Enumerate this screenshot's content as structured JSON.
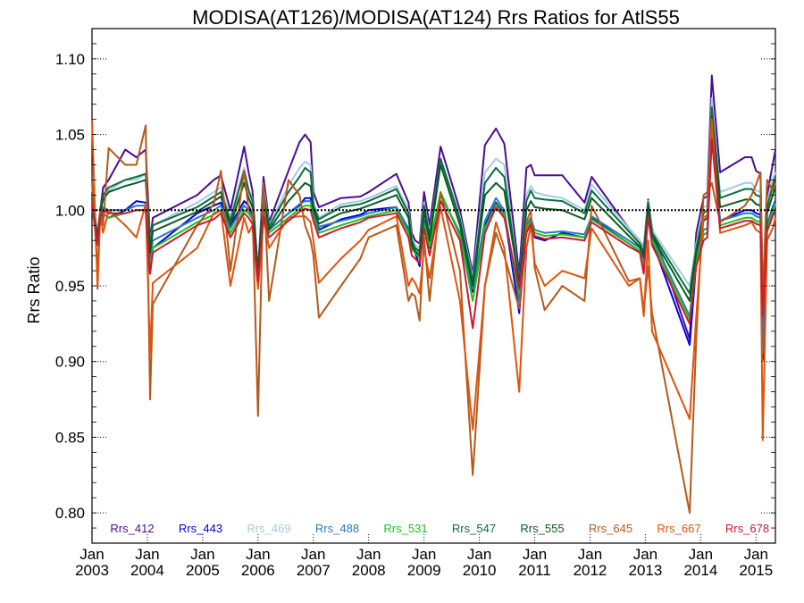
{
  "chart_data": {
    "type": "line",
    "title": "MODISA(AT126)/MODISA(AT124)  Rrs Ratios for AtlS55",
    "xlabel": "",
    "ylabel": "Rrs Ratio",
    "xlim": [
      2003.0,
      2015.35
    ],
    "ylim": [
      0.78,
      1.12
    ],
    "y_ticks": [
      0.8,
      0.85,
      0.9,
      0.95,
      1.0,
      1.05,
      1.1
    ],
    "y_tick_labels": [
      "0.80",
      "0.85",
      "0.90",
      "0.95",
      "1.00",
      "1.05",
      "1.10"
    ],
    "x_ticks": [
      2003,
      2004,
      2005,
      2006,
      2007,
      2008,
      2009,
      2010,
      2011,
      2012,
      2013,
      2014,
      2015
    ],
    "x_tick_labels_top": [
      "Jan",
      "Jan",
      "Jan",
      "Jan",
      "Jan",
      "Jan",
      "Jan",
      "Jan",
      "Jan",
      "Jan",
      "Jan",
      "Jan",
      "Jan"
    ],
    "x_tick_labels_bottom": [
      "2003",
      "2004",
      "2005",
      "2006",
      "2007",
      "2008",
      "2009",
      "2010",
      "2011",
      "2012",
      "2013",
      "2014",
      "2015"
    ],
    "reference_line": 1.0,
    "legend_position": "bottom, inside plot, one row",
    "x": [
      2003.0,
      2003.1,
      2003.15,
      2003.2,
      2003.3,
      2003.6,
      2003.8,
      2003.97,
      2004.05,
      2004.1,
      2004.9,
      2005.2,
      2005.33,
      2005.5,
      2005.75,
      2005.83,
      2005.9,
      2006.0,
      2006.1,
      2006.2,
      2006.55,
      2006.75,
      2006.85,
      2006.95,
      2007.0,
      2007.1,
      2007.5,
      2007.85,
      2008.0,
      2008.5,
      2008.72,
      2008.78,
      2008.84,
      2008.92,
      2009.0,
      2009.1,
      2009.3,
      2009.65,
      2009.88,
      2010.1,
      2010.3,
      2010.45,
      2010.72,
      2010.85,
      2010.93,
      2011.0,
      2011.18,
      2011.5,
      2011.9,
      2012.03,
      2012.7,
      2012.9,
      2012.97,
      2013.05,
      2013.12,
      2013.8,
      2013.92,
      2014.05,
      2014.12,
      2014.2,
      2014.35,
      2014.8,
      2014.92,
      2015.0,
      2015.08,
      2015.12,
      2015.2,
      2015.3,
      2015.35
    ],
    "series": [
      {
        "name": "Rrs_412",
        "color": "#4b0c92",
        "values": [
          1.01,
          0.98,
          1.0,
          1.015,
          1.02,
          1.04,
          1.035,
          1.04,
          0.98,
          0.995,
          1.01,
          1.02,
          1.023,
          1.0,
          1.042,
          1.025,
          1.013,
          0.958,
          1.022,
          0.992,
          1.026,
          1.045,
          1.05,
          1.045,
          1.012,
          1.002,
          1.008,
          1.009,
          1.012,
          1.024,
          1.005,
          0.985,
          0.98,
          0.978,
          1.012,
          0.99,
          1.042,
          1.0,
          0.958,
          1.043,
          1.054,
          1.044,
          0.958,
          1.028,
          1.03,
          1.023,
          1.023,
          1.023,
          1.005,
          1.022,
          0.988,
          0.98,
          0.975,
          1.007,
          0.988,
          0.915,
          0.985,
          1.008,
          1.009,
          1.089,
          1.025,
          1.035,
          1.035,
          1.026,
          1.024,
          0.943,
          1.01,
          1.03,
          1.04
        ]
      },
      {
        "name": "Rrs_443",
        "color": "#0000e0",
        "values": [
          1.002,
          0.978,
          0.993,
          0.998,
          0.995,
          1.0,
          1.006,
          1.005,
          0.958,
          0.975,
          0.998,
          1.003,
          1.005,
          0.99,
          1.006,
          1.003,
          0.997,
          0.952,
          1.001,
          0.987,
          0.998,
          1.003,
          1.008,
          1.008,
          0.998,
          0.987,
          0.994,
          0.997,
          1.0,
          1.002,
          0.987,
          0.975,
          0.972,
          0.963,
          0.993,
          0.975,
          1.01,
          0.985,
          0.946,
          0.99,
          1.005,
          0.998,
          0.932,
          0.988,
          0.993,
          0.982,
          0.98,
          0.985,
          0.982,
          0.995,
          0.978,
          0.973,
          0.963,
          1.001,
          0.98,
          0.911,
          0.965,
          0.984,
          0.985,
          1.053,
          0.993,
          1.0,
          1.0,
          0.998,
          0.997,
          0.901,
          0.99,
          1.002,
          1.006
        ]
      },
      {
        "name": "Rrs_469",
        "color": "#a3cbe6",
        "values": [
          1.015,
          0.983,
          1.002,
          1.008,
          1.013,
          1.02,
          1.02,
          1.024,
          0.978,
          0.99,
          1.005,
          1.012,
          1.015,
          0.996,
          1.028,
          1.014,
          1.007,
          0.958,
          1.015,
          0.99,
          1.016,
          1.028,
          1.032,
          1.03,
          1.006,
          0.995,
          1.004,
          1.006,
          1.008,
          1.016,
          1.0,
          0.982,
          0.977,
          0.975,
          1.005,
          0.985,
          1.034,
          0.996,
          0.955,
          1.025,
          1.034,
          1.03,
          0.952,
          1.01,
          1.016,
          1.012,
          1.01,
          1.008,
          1.0,
          1.017,
          0.988,
          0.98,
          0.974,
          1.006,
          0.987,
          0.95,
          0.978,
          1.002,
          1.003,
          1.074,
          1.012,
          1.018,
          1.018,
          1.013,
          1.012,
          0.935,
          1.005,
          1.02,
          1.025
        ]
      },
      {
        "name": "Rrs_488",
        "color": "#2c7bb6",
        "values": [
          1.005,
          0.98,
          0.998,
          1.002,
          1.0,
          1.0,
          1.003,
          1.003,
          0.968,
          0.98,
          0.995,
          1.0,
          1.003,
          0.988,
          1.003,
          1.0,
          0.996,
          0.956,
          1.0,
          0.987,
          0.998,
          1.004,
          1.006,
          1.006,
          0.998,
          0.989,
          0.993,
          0.996,
          0.998,
          1.002,
          0.988,
          0.978,
          0.975,
          0.972,
          0.992,
          0.978,
          1.01,
          0.985,
          0.948,
          0.993,
          1.008,
          1.0,
          0.94,
          0.99,
          0.995,
          0.987,
          0.985,
          0.986,
          0.984,
          0.996,
          0.98,
          0.975,
          0.966,
          1.0,
          0.982,
          0.93,
          0.968,
          0.987,
          0.988,
          1.05,
          0.993,
          0.998,
          0.998,
          0.996,
          0.995,
          0.905,
          0.99,
          1.001,
          1.005
        ]
      },
      {
        "name": "Rrs_531",
        "color": "#1bc41b",
        "values": [
          1.003,
          0.978,
          0.996,
          0.998,
          0.995,
          0.998,
          1.0,
          1.0,
          0.96,
          0.975,
          0.992,
          0.997,
          1.0,
          0.985,
          1.0,
          0.998,
          0.994,
          0.958,
          0.998,
          0.985,
          0.995,
          1.001,
          1.003,
          1.003,
          0.995,
          0.985,
          0.99,
          0.994,
          0.996,
          1.0,
          0.985,
          0.974,
          0.972,
          0.968,
          0.99,
          0.976,
          1.012,
          0.983,
          0.94,
          0.988,
          1.004,
          0.997,
          0.945,
          0.988,
          0.993,
          0.985,
          0.983,
          0.984,
          0.982,
          0.994,
          0.978,
          0.973,
          0.963,
          0.998,
          0.98,
          0.928,
          0.966,
          0.984,
          0.985,
          1.05,
          0.99,
          0.995,
          0.995,
          0.993,
          0.992,
          0.93,
          0.988,
          0.998,
          1.004
        ]
      },
      {
        "name": "Rrs_547",
        "color": "#0a6e3c",
        "values": [
          1.012,
          0.982,
          1.001,
          1.01,
          1.015,
          1.02,
          1.022,
          1.024,
          0.976,
          0.99,
          1.002,
          1.009,
          1.012,
          0.993,
          1.026,
          1.013,
          1.006,
          0.96,
          1.012,
          0.989,
          1.012,
          1.022,
          1.028,
          1.025,
          1.003,
          0.994,
          1.002,
          1.004,
          1.006,
          1.014,
          0.998,
          0.98,
          0.975,
          0.973,
          1.003,
          0.983,
          1.034,
          0.994,
          0.953,
          1.018,
          1.028,
          1.022,
          0.952,
          1.006,
          1.013,
          1.008,
          1.007,
          1.006,
          0.998,
          1.013,
          0.986,
          0.978,
          0.972,
          1.005,
          0.985,
          0.945,
          0.975,
          0.998,
          1.0,
          1.068,
          1.008,
          1.014,
          1.014,
          1.01,
          1.009,
          0.933,
          1.002,
          1.016,
          1.022
        ]
      },
      {
        "name": "Rrs_555",
        "color": "#0b5a22",
        "values": [
          1.008,
          0.98,
          0.999,
          1.007,
          1.012,
          1.016,
          1.018,
          1.02,
          0.972,
          0.986,
          0.999,
          1.006,
          1.009,
          0.99,
          1.018,
          1.008,
          1.002,
          0.96,
          1.008,
          0.987,
          1.006,
          1.014,
          1.018,
          1.016,
          1.0,
          0.991,
          0.998,
          1.001,
          1.003,
          1.01,
          0.995,
          0.977,
          0.973,
          0.97,
          0.999,
          0.98,
          1.03,
          0.99,
          0.95,
          1.01,
          1.018,
          1.013,
          0.952,
          1.0,
          1.006,
          1.002,
          1.001,
          1.0,
          0.994,
          1.008,
          0.983,
          0.976,
          0.969,
          1.002,
          0.983,
          0.94,
          0.972,
          0.993,
          0.995,
          1.062,
          1.002,
          1.007,
          1.007,
          1.004,
          1.003,
          0.93,
          0.998,
          1.01,
          1.016
        ]
      },
      {
        "name": "Rrs_645",
        "color": "#b5591c",
        "values": [
          1.02,
          0.96,
          1.0,
          0.99,
          1.041,
          1.03,
          1.03,
          1.056,
          0.875,
          0.938,
          0.99,
          1.004,
          1.026,
          0.96,
          1.026,
          1.0,
          1.0,
          0.864,
          1.018,
          0.94,
          1.02,
          1.01,
          0.99,
          0.98,
          0.97,
          0.929,
          0.95,
          0.968,
          0.982,
          0.99,
          0.94,
          0.945,
          0.943,
          0.927,
          0.982,
          0.94,
          1.012,
          0.96,
          0.825,
          0.95,
          0.985,
          0.97,
          0.935,
          0.992,
          1.0,
          0.962,
          0.934,
          0.95,
          0.94,
          1.003,
          0.953,
          0.955,
          0.934,
          0.963,
          0.932,
          0.8,
          0.915,
          1.01,
          1.012,
          1.018,
          0.992,
          1.003,
          1.01,
          1.017,
          1.025,
          0.942,
          1.02,
          1.013,
          1.018
        ]
      },
      {
        "name": "Rrs_667",
        "color": "#e0530d",
        "values": [
          1.06,
          0.948,
          0.998,
          0.985,
          1.0,
          0.99,
          0.982,
          1.004,
          0.905,
          0.952,
          0.975,
          0.998,
          1.0,
          0.95,
          0.995,
          0.985,
          0.99,
          0.948,
          0.995,
          0.975,
          0.995,
          0.996,
          0.996,
          0.992,
          0.98,
          0.952,
          0.968,
          0.98,
          0.987,
          0.996,
          0.95,
          0.955,
          0.952,
          0.945,
          0.975,
          0.955,
          1.002,
          0.94,
          0.855,
          0.95,
          0.992,
          0.975,
          0.88,
          0.975,
          0.99,
          0.965,
          0.95,
          0.96,
          0.955,
          0.988,
          0.95,
          0.955,
          0.93,
          0.98,
          0.92,
          0.862,
          0.93,
          0.995,
          0.997,
          1.06,
          0.985,
          0.99,
          0.992,
          0.987,
          0.985,
          0.848,
          0.98,
          0.988,
          0.995
        ]
      },
      {
        "name": "Rrs_678",
        "color": "#cc1a33",
        "values": [
          1.005,
          0.977,
          0.996,
          1.0,
          0.998,
          0.998,
          1.0,
          1.0,
          0.958,
          0.972,
          0.99,
          0.994,
          0.998,
          0.982,
          0.998,
          0.995,
          0.991,
          0.953,
          0.996,
          0.982,
          0.993,
          0.999,
          1.001,
          1.0,
          0.993,
          0.982,
          0.988,
          0.992,
          0.995,
          0.998,
          0.982,
          0.97,
          0.968,
          0.965,
          0.988,
          0.97,
          1.006,
          0.98,
          0.922,
          0.985,
          1.002,
          0.995,
          0.948,
          0.985,
          0.991,
          0.983,
          0.981,
          0.982,
          0.98,
          0.992,
          0.976,
          0.972,
          0.958,
          0.996,
          0.977,
          0.925,
          0.963,
          0.98,
          0.982,
          1.047,
          0.988,
          0.993,
          0.993,
          0.991,
          0.99,
          0.93,
          0.986,
          0.996,
          1.0
        ]
      }
    ]
  }
}
